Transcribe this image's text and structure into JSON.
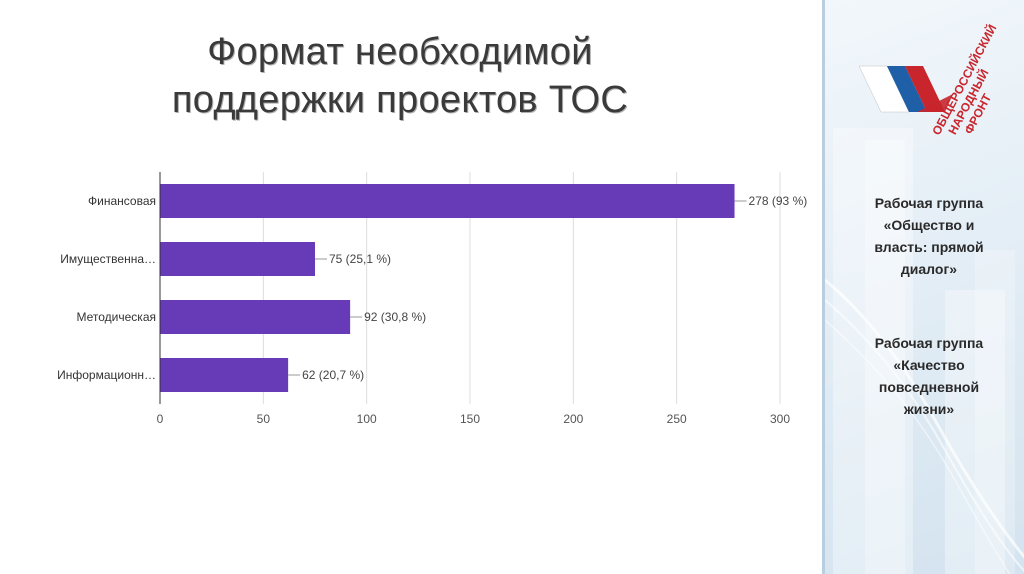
{
  "title_line1": "Формат необходимой",
  "title_line2": "поддержки проектов ТОС",
  "chart_data": {
    "type": "bar",
    "orientation": "horizontal",
    "categories": [
      "Финансовая",
      "Имущественна…",
      "Методическая",
      "Информационн…"
    ],
    "values": [
      278,
      75,
      92,
      62
    ],
    "value_labels": [
      "278 (93 %)",
      "75 (25,1 %)",
      "92 (30,8 %)",
      "62 (20,7 %)"
    ],
    "xlim": [
      0,
      300
    ],
    "xticks": [
      "0",
      "50",
      "100",
      "150",
      "200",
      "250",
      "300"
    ],
    "bar_color": "#673ab7",
    "grid": true,
    "title": "",
    "xlabel": "",
    "ylabel": ""
  },
  "logo_lines": [
    "ОБЩЕРОССИЙСКИЙ",
    "НАРОДНЫЙ",
    "ФРОНТ"
  ],
  "groups": [
    {
      "lines": [
        "Рабочая группа",
        "«Общество и",
        "власть: прямой",
        "диалог»"
      ]
    },
    {
      "lines": [
        "Рабочая группа",
        "«Качество",
        "повседневной",
        "жизни»"
      ]
    }
  ],
  "colors": {
    "accent": "#673ab7",
    "logo_red": "#c8252c",
    "logo_blue": "#1f5fa8"
  }
}
